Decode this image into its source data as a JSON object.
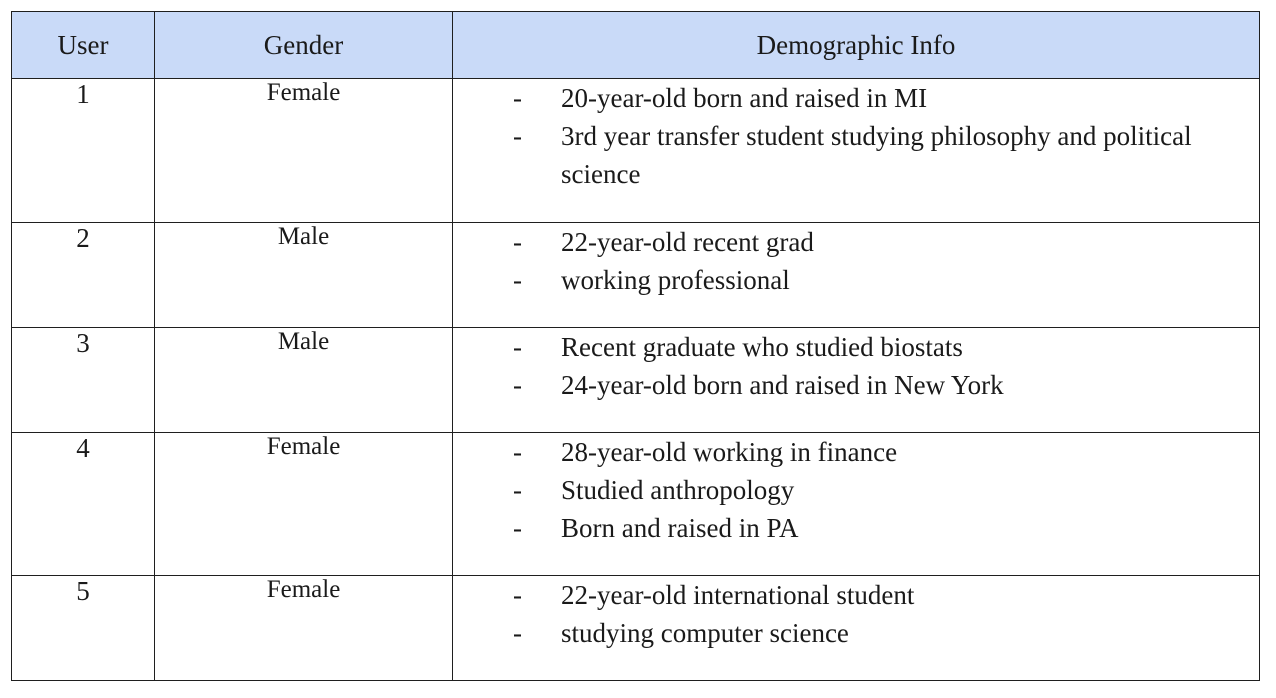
{
  "table": {
    "headers": {
      "user": "User",
      "gender": "Gender",
      "info": "Demographic Info"
    },
    "header_bg": "#c9daf8",
    "bullet": "-",
    "rows": [
      {
        "user": "1",
        "gender": "Female",
        "info": [
          "20-year-old born and raised in MI",
          "3rd year transfer student studying philosophy and political science"
        ]
      },
      {
        "user": "2",
        "gender": "Male",
        "info": [
          "22-year-old recent grad",
          "working professional"
        ]
      },
      {
        "user": "3",
        "gender": "Male",
        "info": [
          "Recent graduate who studied biostats",
          "24-year-old born and raised in New York"
        ]
      },
      {
        "user": "4",
        "gender": "Female",
        "info": [
          "28-year-old working in finance",
          "Studied anthropology",
          "Born and raised in PA"
        ]
      },
      {
        "user": "5",
        "gender": "Female",
        "info": [
          "22-year-old international student",
          "studying computer science"
        ]
      }
    ]
  }
}
